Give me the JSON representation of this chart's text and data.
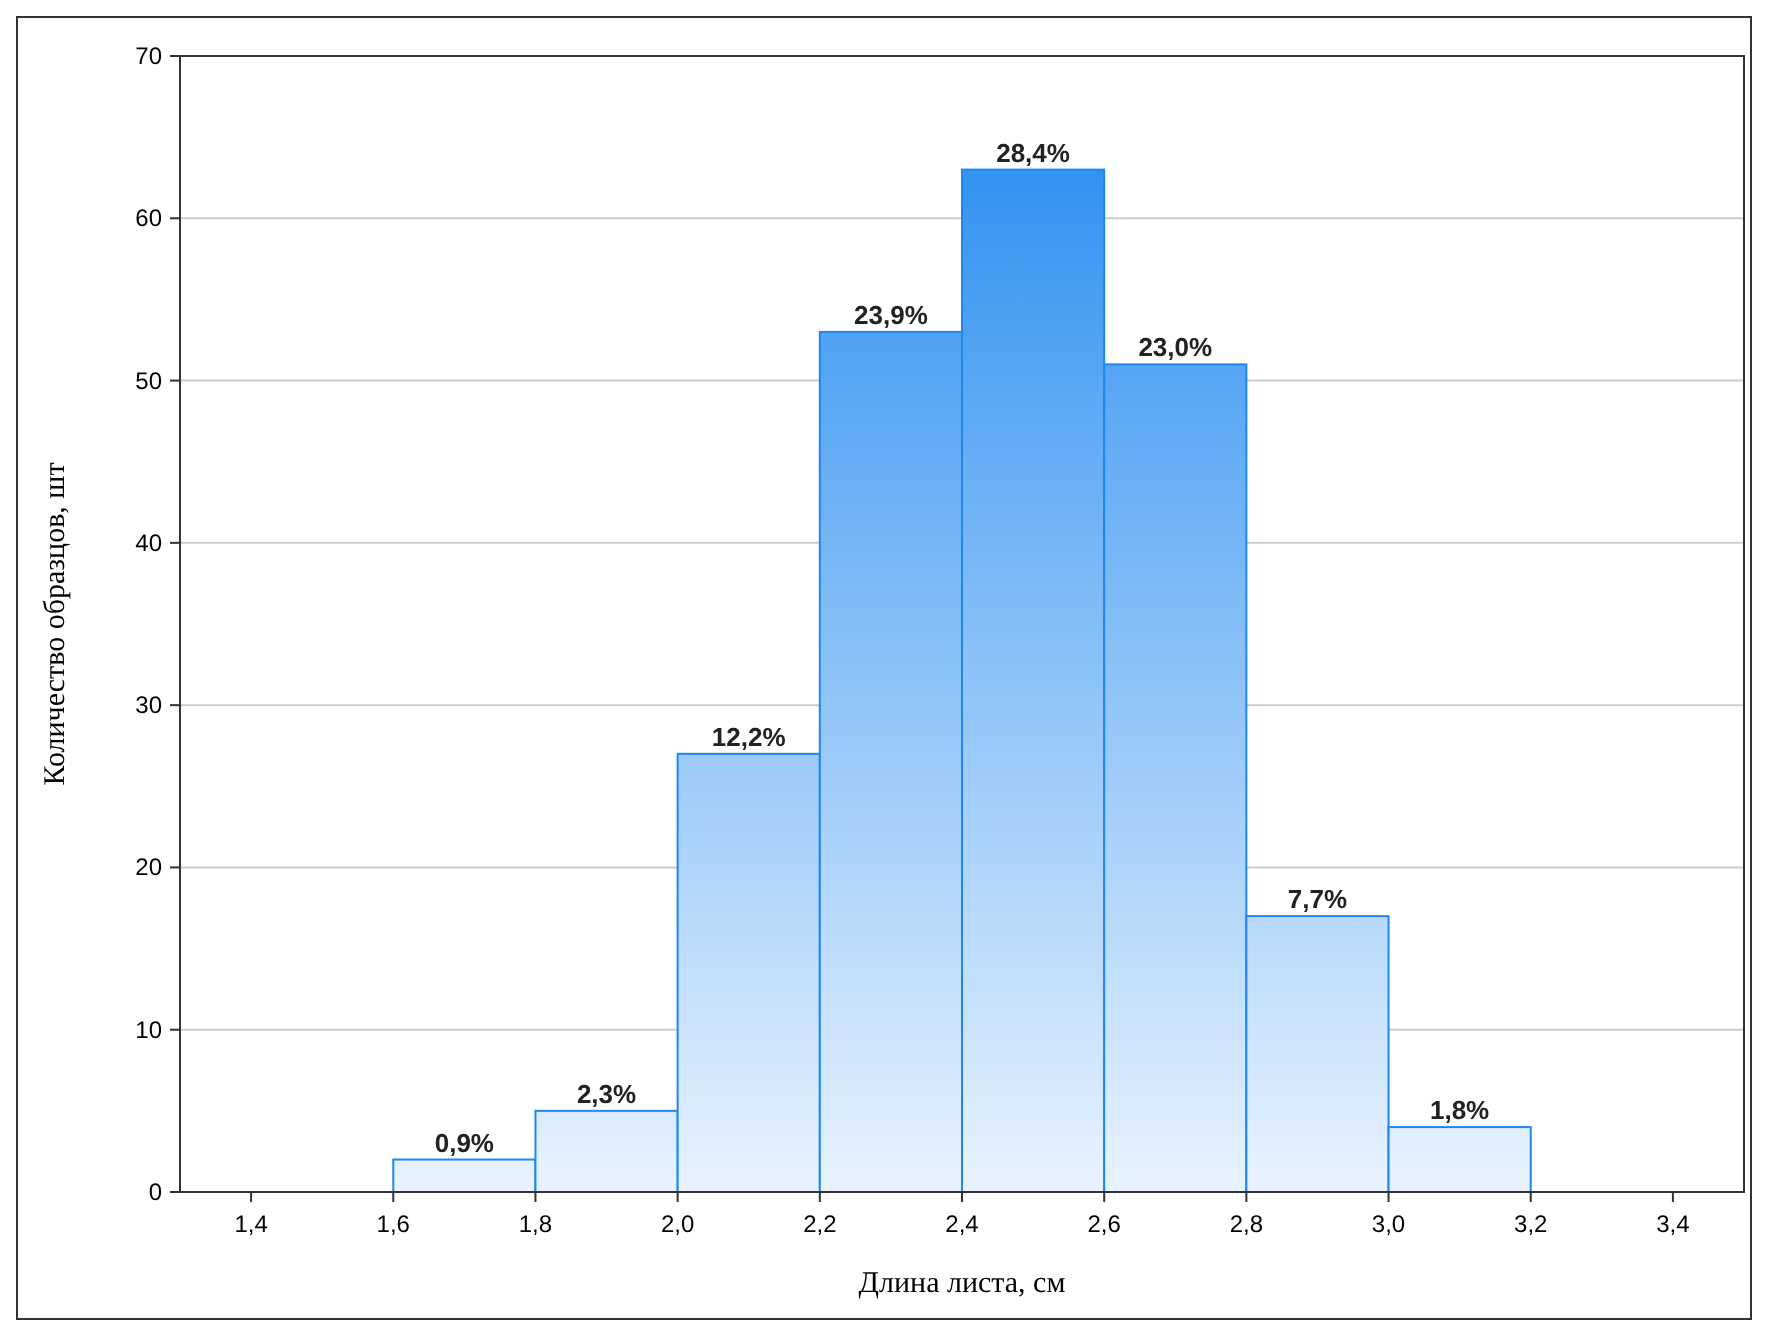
{
  "chart_data": {
    "type": "histogram",
    "xlabel": "Длина листа, см",
    "ylabel": "Количество образцов, шт",
    "bins": [
      1.6,
      1.8,
      2.0,
      2.2,
      2.4,
      2.6,
      2.8,
      3.0,
      3.2
    ],
    "values": [
      2,
      5,
      27,
      53,
      63,
      51,
      17,
      4
    ],
    "annotations": [
      {
        "text": "0,9%",
        "x": 1.7,
        "y": 2
      },
      {
        "text": "2,3%",
        "x": 1.9,
        "y": 5
      },
      {
        "text": "12,2%",
        "x": 2.1,
        "y": 27
      },
      {
        "text": "23,9%",
        "x": 2.3,
        "y": 53
      },
      {
        "text": "28,4%",
        "x": 2.5,
        "y": 63
      },
      {
        "text": "23,0%",
        "x": 2.7,
        "y": 51
      },
      {
        "text": "7,7%",
        "x": 2.9,
        "y": 17
      },
      {
        "text": "1,8%",
        "x": 3.1,
        "y": 4
      }
    ],
    "color": "#1e88f0",
    "xlim": [
      1.3,
      3.5
    ],
    "xticks": [
      {
        "value": 1.4,
        "label": "1,4"
      },
      {
        "value": 1.6,
        "label": "1,6"
      },
      {
        "value": 1.8,
        "label": "1,8"
      },
      {
        "value": 2.0,
        "label": "2,0"
      },
      {
        "value": 2.2,
        "label": "2,2"
      },
      {
        "value": 2.4,
        "label": "2,4"
      },
      {
        "value": 2.6,
        "label": "2,6"
      },
      {
        "value": 2.8,
        "label": "2,8"
      },
      {
        "value": 3.0,
        "label": "3,0"
      },
      {
        "value": 3.2,
        "label": "3,2"
      },
      {
        "value": 3.4,
        "label": "3,4"
      }
    ],
    "ylim": [
      0,
      70
    ],
    "yticks": [
      0,
      10,
      20,
      30,
      40,
      50,
      60,
      70
    ],
    "grid": "y"
  }
}
